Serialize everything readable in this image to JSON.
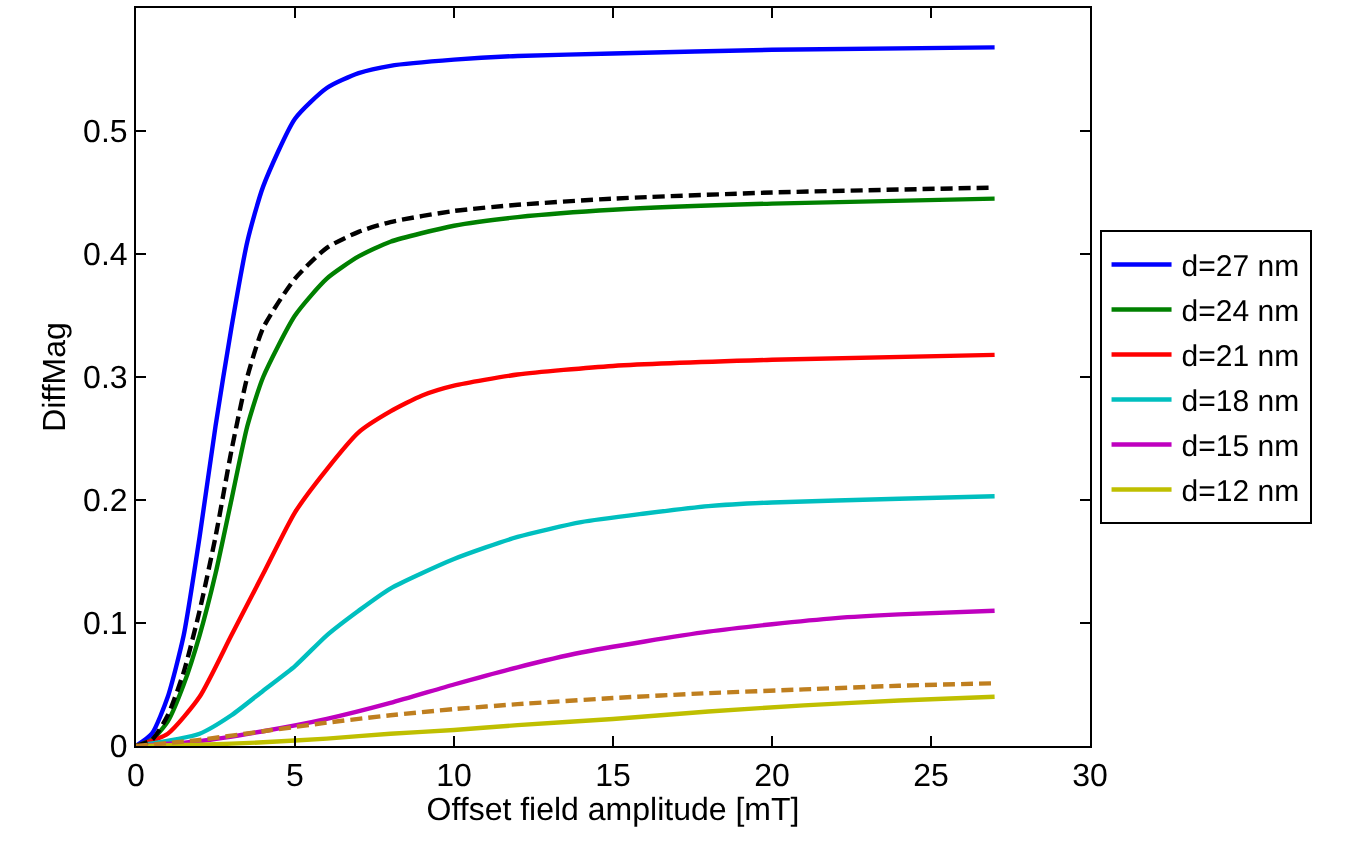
{
  "chart_data": {
    "type": "line",
    "xlabel": "Offset field amplitude [mT]",
    "ylabel": "DiffMag",
    "xlim": [
      0,
      30
    ],
    "xticks": [
      0,
      5,
      10,
      15,
      20,
      25,
      30
    ],
    "ylim": [
      0,
      0.6
    ],
    "yticks": [
      0,
      0.1,
      0.2,
      0.3,
      0.4,
      0.5
    ],
    "grid": false,
    "legend": "right",
    "marker": "none",
    "series": [
      {
        "name": "d=27 nm",
        "color": "#0000ff",
        "line_style": "solid",
        "x": [
          0,
          0.5,
          1,
          1.5,
          2,
          2.5,
          3,
          3.5,
          4,
          5,
          6,
          7,
          8,
          10,
          12,
          15,
          20,
          27
        ],
        "values": [
          0,
          0.01,
          0.04,
          0.09,
          0.17,
          0.26,
          0.34,
          0.41,
          0.455,
          0.51,
          0.535,
          0.547,
          0.553,
          0.558,
          0.561,
          0.563,
          0.566,
          0.568
        ]
      },
      {
        "name": "d=24 nm",
        "color": "#008000",
        "line_style": "solid",
        "x": [
          0,
          0.5,
          1,
          1.5,
          2,
          2.5,
          3,
          3.5,
          4,
          5,
          6,
          7,
          8,
          10,
          12,
          15,
          20,
          27
        ],
        "values": [
          0,
          0.005,
          0.02,
          0.05,
          0.09,
          0.14,
          0.2,
          0.26,
          0.3,
          0.35,
          0.38,
          0.398,
          0.41,
          0.423,
          0.43,
          0.436,
          0.441,
          0.445
        ]
      },
      {
        "name": "d=21 nm",
        "color": "#ff0000",
        "line_style": "solid",
        "x": [
          0,
          1,
          2,
          3,
          4,
          5,
          6,
          7,
          8,
          9,
          10,
          12,
          15,
          20,
          27
        ],
        "values": [
          0,
          0.01,
          0.04,
          0.09,
          0.14,
          0.19,
          0.225,
          0.255,
          0.272,
          0.285,
          0.293,
          0.302,
          0.309,
          0.314,
          0.318
        ]
      },
      {
        "name": "d=18 nm",
        "color": "#00bfbf",
        "line_style": "solid",
        "x": [
          0,
          2,
          3,
          4,
          5,
          6,
          7,
          8,
          10,
          12,
          14,
          16,
          18,
          20,
          24,
          27
        ],
        "values": [
          0,
          0.01,
          0.025,
          0.045,
          0.065,
          0.09,
          0.11,
          0.128,
          0.152,
          0.17,
          0.182,
          0.189,
          0.195,
          0.198,
          0.201,
          0.203
        ]
      },
      {
        "name": "d=15 nm",
        "color": "#bf00bf",
        "line_style": "solid",
        "x": [
          0,
          2,
          4,
          6,
          8,
          10,
          12,
          14,
          16,
          18,
          20,
          22,
          24,
          27
        ],
        "values": [
          0,
          0.004,
          0.012,
          0.022,
          0.035,
          0.05,
          0.064,
          0.076,
          0.085,
          0.093,
          0.099,
          0.104,
          0.107,
          0.11
        ]
      },
      {
        "name": "d=12 nm",
        "color": "#bfbf00",
        "line_style": "solid",
        "x": [
          0,
          2,
          4,
          6,
          8,
          10,
          12,
          15,
          18,
          21,
          24,
          27
        ],
        "values": [
          0,
          0.001,
          0.003,
          0.006,
          0.01,
          0.013,
          0.017,
          0.022,
          0.028,
          0.033,
          0.037,
          0.04
        ]
      },
      {
        "color": "#000000",
        "line_style": "dashed",
        "x": [
          0,
          0.5,
          1,
          1.5,
          2,
          2.5,
          3,
          3.5,
          4,
          5,
          6,
          7,
          8,
          10,
          12,
          15,
          20,
          27
        ],
        "values": [
          0,
          0.005,
          0.025,
          0.06,
          0.11,
          0.17,
          0.24,
          0.3,
          0.34,
          0.38,
          0.405,
          0.418,
          0.426,
          0.435,
          0.44,
          0.445,
          0.45,
          0.454
        ]
      },
      {
        "color": "#bf7f1f",
        "line_style": "dashed",
        "x": [
          0,
          2,
          4,
          6,
          8,
          10,
          12,
          15,
          18,
          21,
          24,
          27
        ],
        "values": [
          0,
          0.005,
          0.012,
          0.019,
          0.025,
          0.03,
          0.034,
          0.039,
          0.043,
          0.046,
          0.049,
          0.051
        ]
      }
    ]
  }
}
